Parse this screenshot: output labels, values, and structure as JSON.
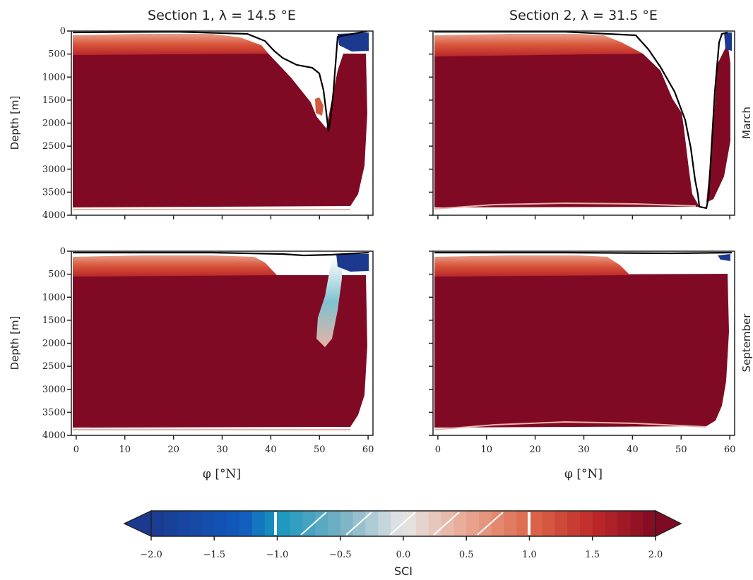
{
  "chart_data": {
    "type": "heatmap",
    "panels": [
      {
        "title": "Section 1, λ = 14.5 °E",
        "row_label": "March"
      },
      {
        "title": "Section 2, λ = 31.5 °E",
        "row_label": "March"
      },
      {
        "title": "",
        "row_label": "September"
      },
      {
        "title": "",
        "row_label": "September"
      }
    ],
    "column_titles": [
      "Section 1, λ = 14.5 °E",
      "Section 2, λ = 31.5 °E"
    ],
    "row_labels": [
      "March",
      "September"
    ],
    "xlabel": "φ [°N]",
    "ylabel": "Depth [m]",
    "x_ticks": [
      "0",
      "10",
      "20",
      "30",
      "40",
      "50",
      "60"
    ],
    "y_ticks": [
      "0",
      "500",
      "1000",
      "1500",
      "2000",
      "2500",
      "3000",
      "3500",
      "4000"
    ],
    "xlim": [
      -1,
      61
    ],
    "ylim": [
      4000,
      0
    ],
    "colorbar": {
      "label": "SCI",
      "ticks": [
        "−2.0",
        "−1.5",
        "−1.0",
        "−0.5",
        "0.0",
        "0.5",
        "1.0",
        "1.5",
        "2.0"
      ],
      "range": [
        -2.0,
        2.0
      ],
      "extend": "both",
      "colormap": "diverging blue-white-red",
      "low_color": "#1b3a8f",
      "high_color": "#800a24"
    },
    "colors": {
      "dominant": "#800a24",
      "upper_layer": "#d3462e",
      "negative": "#1b3a8f"
    }
  }
}
